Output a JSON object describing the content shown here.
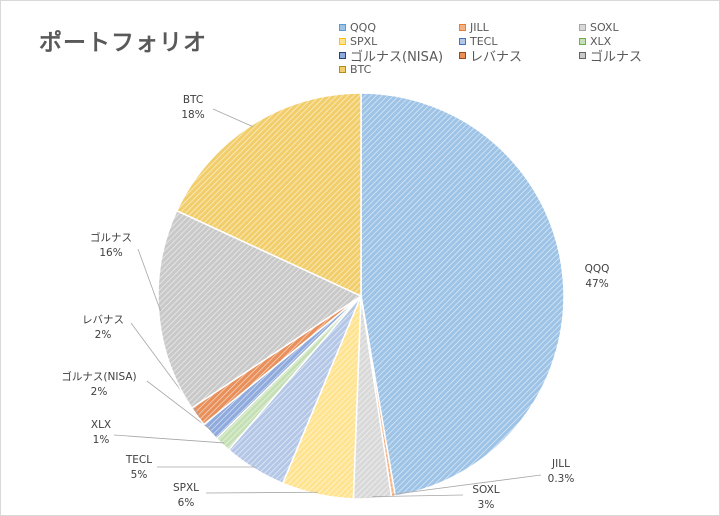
{
  "chart_data": {
    "type": "pie",
    "title": "ポートフォリオ",
    "legend_position": "top-right",
    "slices": [
      {
        "name": "QQQ",
        "value": 47.3,
        "label": "QQQ",
        "pct": "47%",
        "color": "#9dc3e6",
        "stroke": "#5b9bd5"
      },
      {
        "name": "JILL",
        "value": 0.3,
        "label": "JILL",
        "pct": "0.3%",
        "color": "#f4b183",
        "stroke": "#ed7d31"
      },
      {
        "name": "SOXL",
        "value": 3.0,
        "label": "SOXL",
        "pct": "3%",
        "color": "#d9d9d9",
        "stroke": "#a5a5a5"
      },
      {
        "name": "SPXL",
        "value": 5.7,
        "label": "SPXL",
        "pct": "6%",
        "color": "#ffe38f",
        "stroke": "#ffc000"
      },
      {
        "name": "TECL",
        "value": 5.0,
        "label": "TECL",
        "pct": "5%",
        "color": "#b4c7e7",
        "stroke": "#4472c4"
      },
      {
        "name": "XLX",
        "value": 1.3,
        "label": "XLX",
        "pct": "1%",
        "color": "#c5e0b4",
        "stroke": "#70ad47"
      },
      {
        "name": "ゴルナス(NISA)",
        "value": 1.5,
        "label": "ゴルナス(NISA)",
        "pct": "2%",
        "color": "#8faadc",
        "stroke": "#264478"
      },
      {
        "name": "レバナス",
        "value": 1.6,
        "label": "レバナス",
        "pct": "2%",
        "color": "#e88f5a",
        "stroke": "#9e480e"
      },
      {
        "name": "ゴルナス",
        "value": 16.2,
        "label": "ゴルナス",
        "pct": "16%",
        "color": "#c9c9c9",
        "stroke": "#636363"
      },
      {
        "name": "BTC",
        "value": 18.1,
        "label": "BTC",
        "pct": "18%",
        "color": "#f2ce6b",
        "stroke": "#b78b18"
      }
    ]
  }
}
